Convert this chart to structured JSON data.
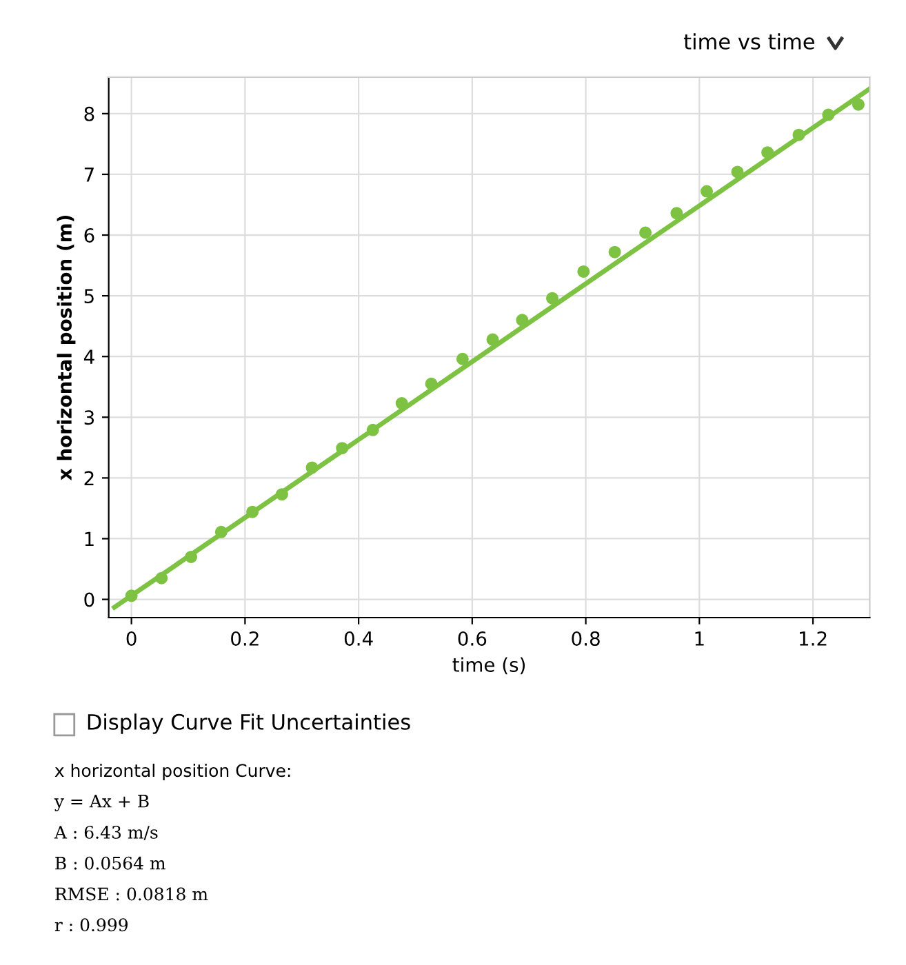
{
  "chart_data": {
    "type": "scatter",
    "title": "time vs time",
    "xlabel": "time (s)",
    "ylabel": "x horizontal position (m)",
    "xlim": [
      -0.04,
      1.3
    ],
    "ylim": [
      -0.3,
      8.6
    ],
    "xticks": [
      0,
      0.2,
      0.4,
      0.6,
      0.8,
      1,
      1.2
    ],
    "yticks": [
      0,
      1,
      2,
      3,
      4,
      5,
      6,
      7,
      8
    ],
    "grid": true,
    "series": [
      {
        "marker": "circle",
        "color": "#7dc242",
        "x": [
          0,
          0.053,
          0.105,
          0.158,
          0.213,
          0.265,
          0.318,
          0.371,
          0.425,
          0.476,
          0.528,
          0.583,
          0.636,
          0.688,
          0.741,
          0.796,
          0.851,
          0.905,
          0.96,
          1.013,
          1.067,
          1.12,
          1.175,
          1.227,
          1.28
        ],
        "values": [
          0.06,
          0.35,
          0.7,
          1.11,
          1.44,
          1.73,
          2.17,
          2.49,
          2.79,
          3.23,
          3.55,
          3.96,
          4.28,
          4.6,
          4.96,
          5.4,
          5.72,
          6.04,
          6.36,
          6.72,
          7.04,
          7.36,
          7.65,
          7.98,
          8.15
        ]
      },
      {
        "type": "line",
        "color": "#7dc242",
        "x": [
          -0.03,
          1.3
        ],
        "values": [
          -0.13,
          8.41
        ]
      }
    ],
    "annotations": [
      "Display Curve Fit Uncertainties",
      "x horizontal position Curve:",
      "y = Ax + B",
      "A : 6.43 m/s",
      "B : 0.0564 m",
      "RMSE : 0.0818 m",
      "r : 0.999"
    ]
  }
}
